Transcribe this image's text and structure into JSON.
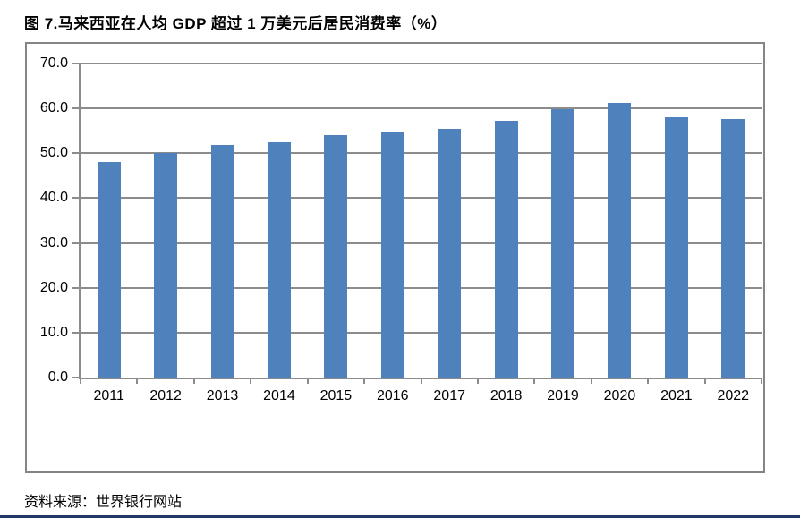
{
  "page": {
    "title": "图 7.马来西亚在人均 GDP 超过 1 万美元后居民消费率（%）",
    "source": "资料来源：世界银行网站"
  },
  "colors": {
    "bar": "#4F81BD",
    "grid": "#8C8C8C",
    "chart_border": "#858585",
    "bottom_rule": "#1F3864",
    "text": "#000000"
  },
  "chart_data": {
    "type": "bar",
    "title": "图 7.马来西亚在人均 GDP 超过 1 万美元后居民消费率（%）",
    "categories": [
      "2011",
      "2012",
      "2013",
      "2014",
      "2015",
      "2016",
      "2017",
      "2018",
      "2019",
      "2020",
      "2021",
      "2022"
    ],
    "values": [
      48.0,
      50.0,
      51.8,
      52.4,
      54.0,
      54.8,
      55.4,
      57.3,
      59.8,
      61.2,
      58.0,
      57.6
    ],
    "series_name": "居民消费率",
    "xlabel": "",
    "ylabel": "",
    "ylim": [
      0,
      70
    ],
    "y_tick_labels": [
      "0.0",
      "10.0",
      "20.0",
      "30.0",
      "40.0",
      "50.0",
      "60.0",
      "70.0"
    ],
    "grid": true,
    "legend": false,
    "source": "资料来源：世界银行网站"
  }
}
